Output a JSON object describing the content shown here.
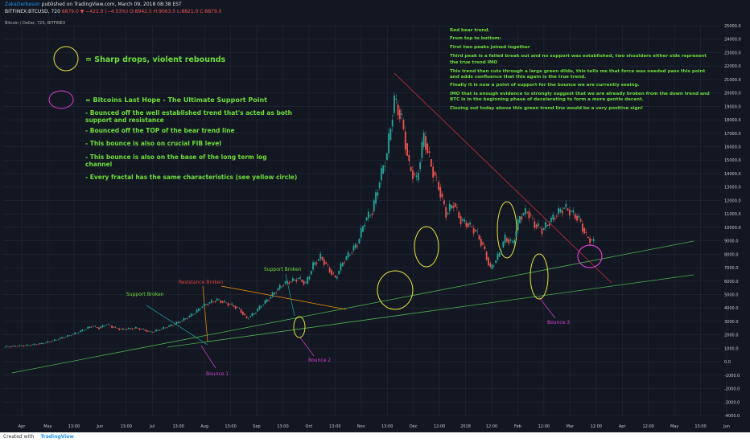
{
  "header": {
    "author": "ZakaDerbeson",
    "published": "published on TradingView.com, March 09, 2018 08:38 EST",
    "symbol_line": "BITFINEX:BTCUSD, 720",
    "change": "8879.0 ▼ −421.0 (−4.53%)",
    "ohlc": "O:8942.5  H:9063.5  L:8821.0  C:8879.0",
    "pane_title": "Bitcoin / Dollar, 720, BITFINEX"
  },
  "footer": {
    "created_with": "Created with",
    "brand": "TradingView"
  },
  "colors": {
    "background": "#131722",
    "grid": "#232838",
    "up": "#26a69a",
    "down": "#ef5350",
    "annotation_green": "#6ede3b",
    "yellow": "#e6e63c",
    "magenta": "#d83fd1",
    "trend_red": "#c62a3a",
    "support_line": "#4caf50"
  },
  "annotations": {
    "legend_yellow": "= Sharp drops, violent rebounds",
    "legend_magenta": "= Bitcoins Last Hope - The Ultimate Support Point",
    "bullets": [
      "- Bounced off the well established trend that's acted as both",
      "  support and resistance",
      "- Bounced off the TOP of the bear trend line",
      "- This bounce is also on crucial FIB level",
      "- This bounce is also on the base of the long term log",
      "  channel",
      "- Every fractal has the same characteristics (see yellow circle)"
    ],
    "notes": [
      "Red bear trend.",
      "From top to bottom:",
      "First two peaks joined together",
      "Third peak is a failed break out and no support was established, two shoulders either side represent",
      "the true trend IMO",
      "This trend then cuts through a large green dildo, this tells me that force was needed pass this point",
      "and adds confluence that this again is the true trend.",
      "Finally it is now a point of support for the bounce we are currently seeing.",
      "IMO that is enough evidence to strongly suggest that we are already broken from the down trend and",
      "BTC is in the beginning phase of decelerating to form a more gentle decent.",
      "Closing out today  above this green trend line would be a very positive sign!"
    ],
    "support_broken_1": "Support Broken",
    "resistance_broken": "Resistance Broken",
    "support_broken_2": "Support Broken",
    "bounce_1": "Bounce 1",
    "bounce_2": "Bounce 2",
    "bounce_3": "Bounce 3"
  },
  "chart_data": {
    "type": "line",
    "title": "Bitcoin / Dollar, 720, BITFINEX",
    "xlabel": "",
    "ylabel": "",
    "ylim": [
      -4500,
      25500
    ],
    "grid": true,
    "x_ticks": [
      "Apr",
      "May",
      "13:00",
      "Jun",
      "13:00",
      "Jul",
      "13:00",
      "Aug",
      "13:00",
      "Sep",
      "13:00",
      "Oct",
      "13:00",
      "Nov",
      "13:00",
      "Dec",
      "12:00",
      "2018",
      "12:00",
      "Feb",
      "12:00",
      "Mar",
      "12:00",
      "Apr",
      "12:00",
      "May",
      "13:00",
      "Jun"
    ],
    "y_ticks": [
      "25000.0",
      "24000.0",
      "23000.0",
      "22000.0",
      "21000.0",
      "20000.0",
      "19000.0",
      "18000.0",
      "17000.0",
      "16000.0",
      "15000.0",
      "14000.0",
      "13000.0",
      "12000.0",
      "11000.0",
      "10000.0",
      "9000.0",
      "8000.0",
      "7000.0",
      "6000.0",
      "5000.0",
      "4000.0",
      "3000.0",
      "2000.0",
      "1000.0",
      "0.0",
      "-1000.0",
      "-2000.0",
      "-3000.0",
      "-4000.0"
    ],
    "y_tick_values": [
      25000,
      24000,
      23000,
      22000,
      21000,
      20000,
      19000,
      18000,
      17000,
      16000,
      15000,
      14000,
      13000,
      12000,
      11000,
      10000,
      9000,
      8000,
      7000,
      6000,
      5000,
      4000,
      3000,
      2000,
      1000,
      0,
      -1000,
      -2000,
      -3000,
      -4000
    ],
    "series": [
      {
        "values": [
          1100,
          1130,
          1170,
          1200,
          1260,
          1330,
          1450,
          1600,
          1780,
          1950,
          2150,
          2400,
          2650,
          2500,
          2800,
          2550,
          2400,
          2450,
          2500,
          2380,
          2200,
          2350,
          2550,
          2750,
          3000,
          3300,
          3650,
          4150,
          4400,
          4600,
          4400,
          4200,
          3900,
          3200,
          3600,
          4200,
          4700,
          5300,
          5800,
          6000,
          6200,
          5800,
          7200,
          7800,
          7000,
          6200,
          7400,
          8100,
          8800,
          10500,
          11200,
          13500,
          15500,
          19500,
          18000,
          14500,
          13500,
          16800,
          14500,
          13000,
          11000,
          11800,
          10500,
          10200,
          9700,
          8600,
          6900,
          7800,
          9200,
          8800,
          10800,
          11200,
          10200,
          9800,
          10400,
          11000,
          11500,
          11100,
          10600,
          9300,
          8879
        ]
      }
    ],
    "series_dates": "Apr 2017 → Mar 2018 (approx. 12h candles, sampled)",
    "overlays": {
      "bear_trend_line": [
        [
          22000
        ],
        [
          7200
        ]
      ],
      "long_term_channel": "two ascending support lines"
    }
  }
}
